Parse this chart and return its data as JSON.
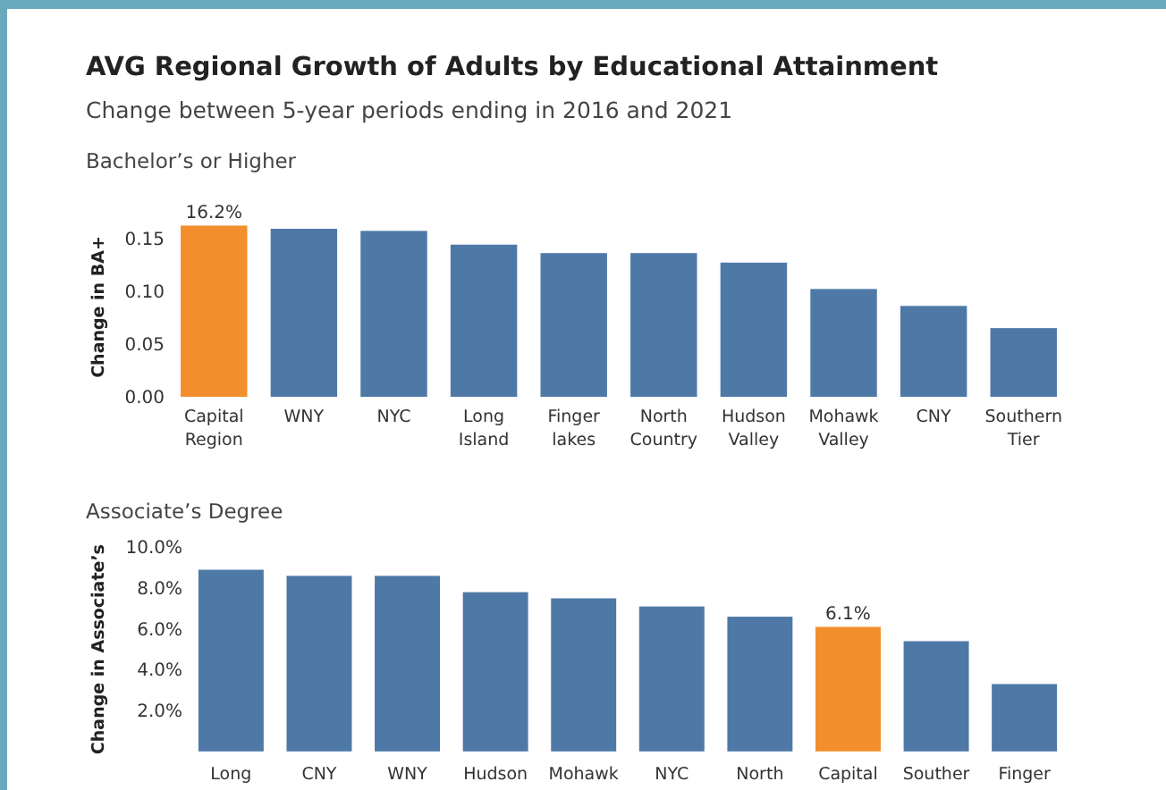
{
  "chart_data": [
    {
      "type": "bar",
      "title": "AVG Regional Growth of Adults by Educational Attainment",
      "subtitle": "Change between 5-year periods ending in 2016 and 2021",
      "annotations": [
        "Bachelor’s or Higher"
      ],
      "ylabel": "Change in BA+",
      "categories": [
        "Capital Region",
        "WNY",
        "NYC",
        "Long Island",
        "Finger lakes",
        "North Country",
        "Hudson Valley",
        "Mohawk Valley",
        "CNY",
        "Southern Tier"
      ],
      "values": [
        0.162,
        0.159,
        0.157,
        0.144,
        0.136,
        0.136,
        0.127,
        0.102,
        0.086,
        0.065
      ],
      "value_labels": [
        "16.2%",
        null,
        null,
        null,
        null,
        null,
        null,
        null,
        null,
        null
      ],
      "colors": [
        "#f28e2b",
        "#4e79a7",
        "#4e79a7",
        "#4e79a7",
        "#4e79a7",
        "#4e79a7",
        "#4e79a7",
        "#4e79a7",
        "#4e79a7",
        "#4e79a7"
      ],
      "ylim": [
        0,
        0.17
      ],
      "yticks": [
        {
          "value": 0,
          "label": "0.00"
        },
        {
          "value": 0.05,
          "label": "0.05"
        },
        {
          "value": 0.1,
          "label": "0.10"
        },
        {
          "value": 0.15,
          "label": "0.15"
        }
      ],
      "grid": false
    },
    {
      "type": "bar",
      "title": "Associate’s Degree",
      "ylabel": "Change in Associate’s",
      "categories": [
        "Long",
        "CNY",
        "WNY",
        "Hudson",
        "Mohawk",
        "NYC",
        "North",
        "Capital",
        "Souther",
        "Finger"
      ],
      "values": [
        8.9,
        8.6,
        8.6,
        7.8,
        7.5,
        7.1,
        6.6,
        6.1,
        5.4,
        3.3
      ],
      "value_labels": [
        null,
        null,
        null,
        null,
        null,
        null,
        null,
        "6.1%",
        null,
        null
      ],
      "colors": [
        "#4e79a7",
        "#4e79a7",
        "#4e79a7",
        "#4e79a7",
        "#4e79a7",
        "#4e79a7",
        "#4e79a7",
        "#f28e2b",
        "#4e79a7",
        "#4e79a7"
      ],
      "ylim": [
        0,
        10
      ],
      "yticks": [
        {
          "value": 2,
          "label": "2.0%"
        },
        {
          "value": 4,
          "label": "4.0%"
        },
        {
          "value": 6,
          "label": "6.0%"
        },
        {
          "value": 8,
          "label": "8.0%"
        },
        {
          "value": 10,
          "label": "10.0%"
        }
      ],
      "grid": false
    }
  ]
}
